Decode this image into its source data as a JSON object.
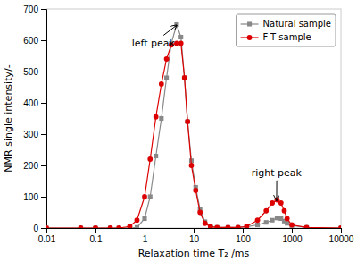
{
  "chart_data": {
    "type": "line",
    "x_label": "Relaxation time T₂ /ms",
    "y_label": "NMR single intensity/-",
    "log": "x",
    "xlim": [
      0.01,
      10000
    ],
    "ylim": [
      0,
      700
    ],
    "xticks": [
      0.01,
      0.1,
      1,
      10,
      100,
      1000,
      10000
    ],
    "yticks": [
      0,
      100,
      200,
      300,
      400,
      500,
      600,
      700
    ],
    "legend": "upper right",
    "x": [
      0.01,
      0.05,
      0.1,
      0.2,
      0.3,
      0.5,
      0.7,
      1.0,
      1.3,
      1.7,
      2.2,
      2.8,
      3.5,
      4.5,
      5.5,
      6.5,
      7.5,
      9.0,
      11.0,
      13.5,
      17.0,
      22.0,
      30.0,
      50.0,
      80.0,
      120.0,
      200.0,
      300.0,
      400.0,
      500.0,
      600.0,
      700.0,
      800.0,
      1000.0,
      2000.0,
      10000.0
    ],
    "series": [
      {
        "name": "Natural sample",
        "color": "#888888",
        "marker": "square",
        "values": [
          0,
          0,
          0,
          0,
          0,
          0,
          2,
          30,
          100,
          230,
          350,
          480,
          590,
          650,
          610,
          480,
          340,
          215,
          130,
          60,
          20,
          6,
          2,
          2,
          2,
          4,
          10,
          18,
          25,
          32,
          30,
          22,
          15,
          8,
          2,
          0
        ]
      },
      {
        "name": "F-T sample",
        "color": "#dd0000",
        "marker": "circle",
        "values": [
          0,
          0,
          0,
          0,
          0,
          5,
          25,
          100,
          220,
          355,
          460,
          540,
          585,
          590,
          590,
          480,
          340,
          200,
          120,
          50,
          15,
          4,
          2,
          2,
          2,
          5,
          25,
          55,
          80,
          90,
          80,
          55,
          30,
          10,
          2,
          0
        ]
      }
    ],
    "annotations": [
      {
        "text": "left peak",
        "x": 4.5,
        "y": 648,
        "text_x": 0.55,
        "text_y": 590
      },
      {
        "text": "right peak",
        "x": 490,
        "y": 88,
        "text_x": 150,
        "text_y": 175
      }
    ]
  }
}
